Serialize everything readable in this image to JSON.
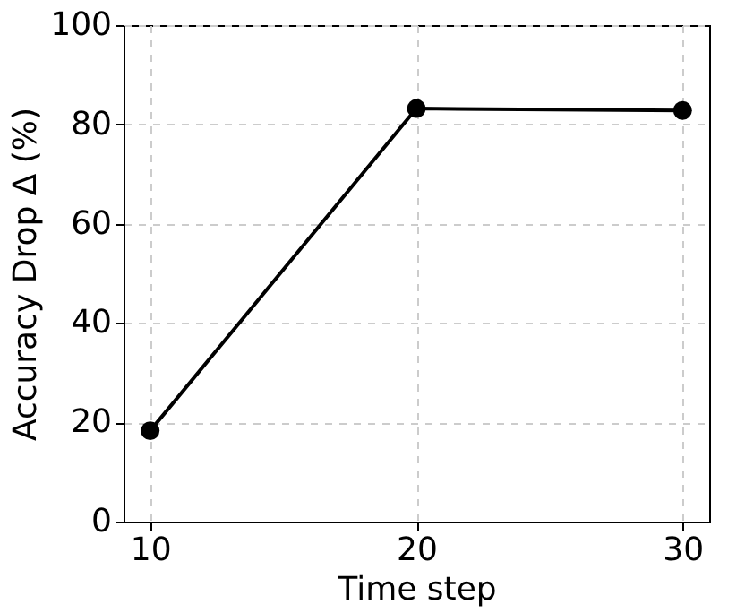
{
  "chart_data": {
    "type": "line",
    "xlabel": "Time step",
    "ylabel": "Accuracy Drop Δ (%)",
    "x": [
      10,
      20,
      30
    ],
    "series": [
      {
        "color": "#000000",
        "values": [
          18.3,
          83.2,
          82.8
        ]
      }
    ],
    "xlim": [
      9,
      31
    ],
    "xticks": [
      10,
      20,
      30
    ],
    "ylim": [
      0,
      100
    ],
    "yticks": [
      0,
      20,
      40,
      60,
      80,
      100
    ],
    "grid": true,
    "marker": "circle",
    "line_style": "solid"
  }
}
